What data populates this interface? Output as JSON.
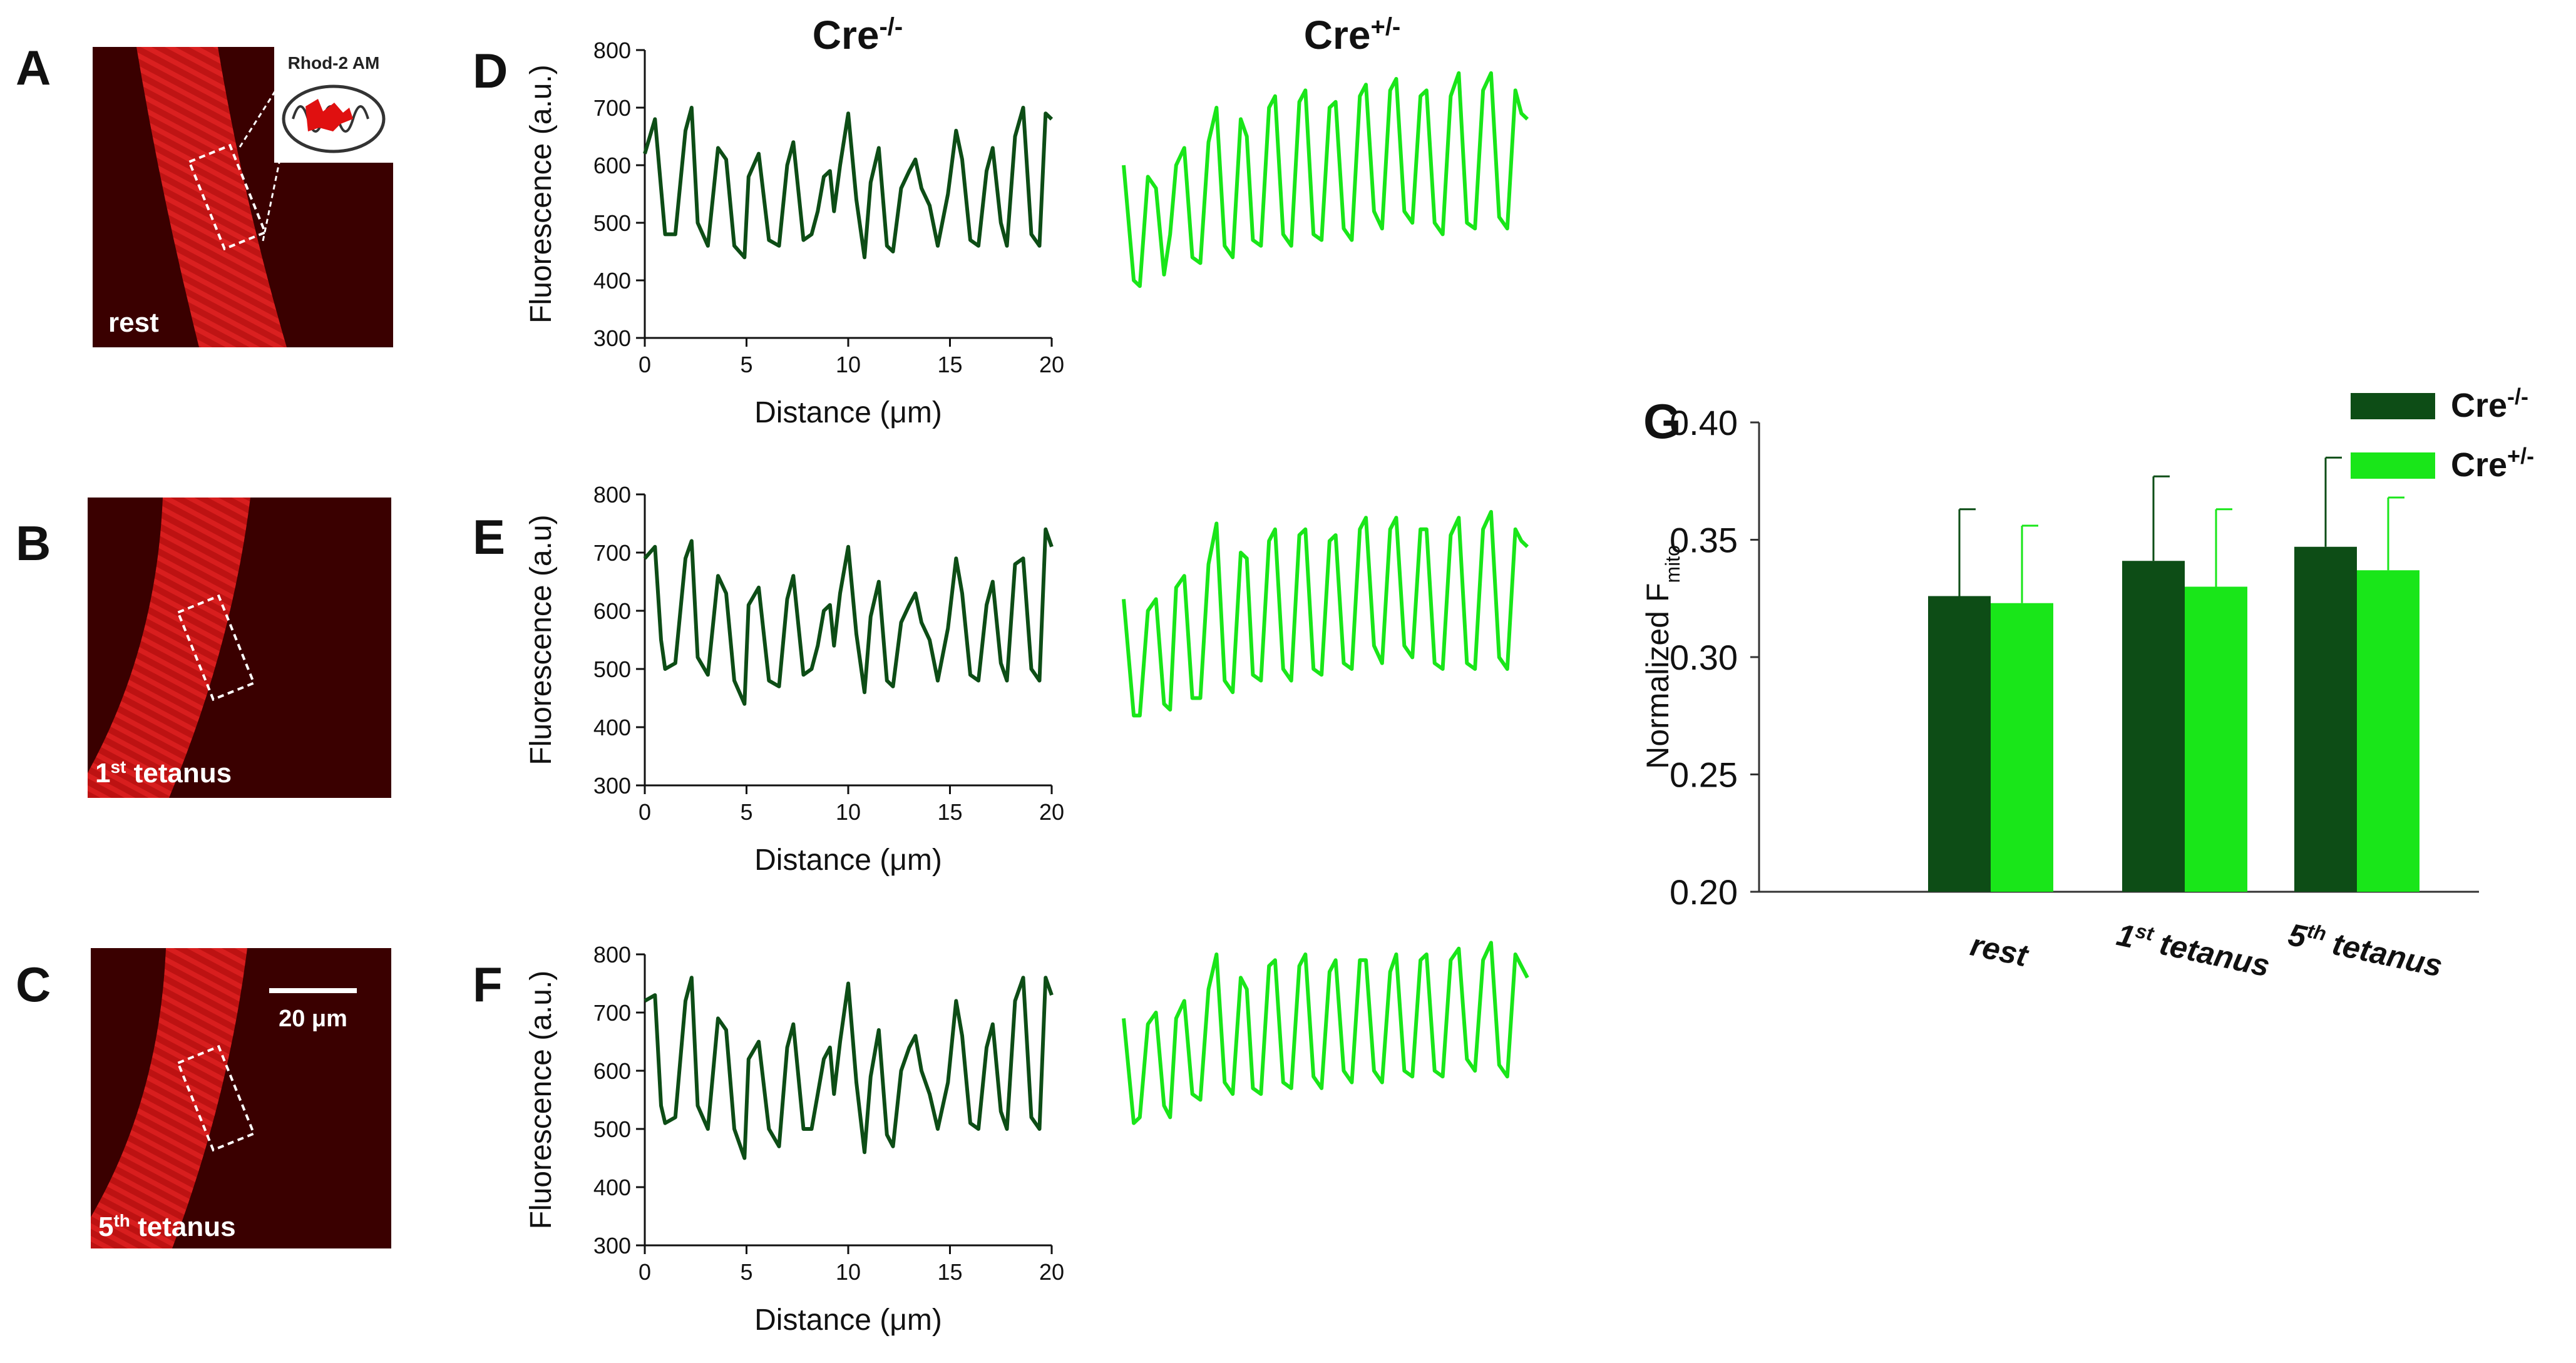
{
  "panels": {
    "A": {
      "letter": "A",
      "label": "rest",
      "inset_label": "Rhod-2 AM"
    },
    "B": {
      "letter": "B",
      "label_base": "1",
      "label_sup": "st",
      "label_rest": " tetanus"
    },
    "C": {
      "letter": "C",
      "label_base": "5",
      "label_sup": "th",
      "label_rest": " tetanus",
      "scalebar_label": "20 μm"
    },
    "D": {
      "letter": "D"
    },
    "E": {
      "letter": "E"
    },
    "F": {
      "letter": "F"
    },
    "G": {
      "letter": "G"
    }
  },
  "column_headers": {
    "ko": {
      "base": "Cre",
      "sup": "-/-"
    },
    "het": {
      "base": "Cre",
      "sup": "+/-"
    }
  },
  "colors": {
    "dark_green": "#0d4d16",
    "light_green": "#19e619",
    "micro_background": "#3a0000",
    "fiber_red": "#c41313"
  },
  "chart_data": [
    {
      "id": "profile-D",
      "type": "line",
      "panel": "D",
      "xlabel": "Distance (μm)",
      "ylabel": "Fluorescence (a.u.)",
      "xlim": [
        0,
        20
      ],
      "ylim": [
        300,
        800
      ],
      "xticks": [
        0,
        5,
        10,
        15,
        20
      ],
      "yticks": [
        300,
        400,
        500,
        600,
        700,
        800
      ],
      "series": [
        {
          "name": "Cre-/-",
          "color": "#0d4d16",
          "x": [
            0,
            0.5,
            0.8,
            1.0,
            1.5,
            2.0,
            2.3,
            2.6,
            3.1,
            3.6,
            4.0,
            4.4,
            4.9,
            5.1,
            5.6,
            6.1,
            6.6,
            7.0,
            7.3,
            7.8,
            8.2,
            8.5,
            8.8,
            9.1,
            9.3,
            9.6,
            10.0,
            10.4,
            10.8,
            11.1,
            11.5,
            11.9,
            12.2,
            12.6,
            13.0,
            13.3,
            13.6,
            14.0,
            14.4,
            14.9,
            15.3,
            15.6,
            16.0,
            16.4,
            16.8,
            17.1,
            17.5,
            17.8,
            18.2,
            18.6,
            19.0,
            19.4,
            19.7,
            20.0
          ],
          "y": [
            620,
            680,
            560,
            480,
            480,
            660,
            700,
            500,
            460,
            630,
            610,
            460,
            440,
            580,
            620,
            470,
            460,
            600,
            640,
            470,
            480,
            520,
            580,
            590,
            520,
            600,
            690,
            540,
            440,
            570,
            630,
            460,
            450,
            560,
            590,
            610,
            560,
            530,
            460,
            550,
            660,
            610,
            470,
            460,
            590,
            630,
            500,
            460,
            650,
            700,
            480,
            460,
            690,
            680
          ]
        },
        {
          "name": "Cre+/-",
          "color": "#19e619",
          "x": [
            0,
            0.5,
            0.8,
            1.2,
            1.6,
            2.0,
            2.3,
            2.6,
            3.0,
            3.4,
            3.8,
            4.2,
            4.6,
            5.0,
            5.4,
            5.8,
            6.1,
            6.4,
            6.8,
            7.2,
            7.5,
            7.9,
            8.3,
            8.7,
            9.0,
            9.4,
            9.8,
            10.2,
            10.5,
            10.9,
            11.3,
            11.7,
            12.0,
            12.4,
            12.8,
            13.2,
            13.5,
            13.9,
            14.3,
            14.7,
            15.0,
            15.4,
            15.8,
            16.2,
            16.6,
            17.0,
            17.4,
            17.8,
            18.2,
            18.6,
            19.0,
            19.4,
            19.7,
            20.0
          ],
          "y": [
            600,
            400,
            390,
            580,
            560,
            410,
            480,
            600,
            630,
            440,
            430,
            640,
            700,
            460,
            440,
            680,
            650,
            470,
            460,
            700,
            720,
            480,
            460,
            710,
            730,
            480,
            470,
            700,
            710,
            490,
            470,
            720,
            740,
            520,
            490,
            730,
            750,
            520,
            500,
            720,
            730,
            500,
            480,
            720,
            760,
            500,
            490,
            730,
            760,
            510,
            490,
            730,
            690,
            680
          ]
        }
      ]
    },
    {
      "id": "profile-E",
      "type": "line",
      "panel": "E",
      "xlabel": "Distance (μm)",
      "ylabel": "Fluorescence (a.u)",
      "xlim": [
        0,
        20
      ],
      "ylim": [
        300,
        800
      ],
      "xticks": [
        0,
        5,
        10,
        15,
        20
      ],
      "yticks": [
        300,
        400,
        500,
        600,
        700,
        800
      ],
      "series": [
        {
          "name": "Cre-/-",
          "color": "#0d4d16",
          "x": [
            0,
            0.5,
            0.8,
            1.0,
            1.5,
            2.0,
            2.3,
            2.6,
            3.1,
            3.6,
            4.0,
            4.4,
            4.9,
            5.1,
            5.6,
            6.1,
            6.6,
            7.0,
            7.3,
            7.8,
            8.2,
            8.5,
            8.8,
            9.1,
            9.3,
            9.6,
            10.0,
            10.4,
            10.8,
            11.1,
            11.5,
            11.9,
            12.2,
            12.6,
            13.0,
            13.3,
            13.6,
            14.0,
            14.4,
            14.9,
            15.3,
            15.6,
            16.0,
            16.4,
            16.8,
            17.1,
            17.5,
            17.8,
            18.2,
            18.6,
            19.0,
            19.4,
            19.7,
            20.0
          ],
          "y": [
            690,
            710,
            550,
            500,
            510,
            690,
            720,
            520,
            490,
            660,
            630,
            480,
            440,
            610,
            640,
            480,
            470,
            620,
            660,
            490,
            500,
            540,
            600,
            610,
            540,
            630,
            710,
            560,
            460,
            590,
            650,
            480,
            470,
            580,
            610,
            630,
            580,
            550,
            480,
            570,
            690,
            630,
            490,
            480,
            610,
            650,
            510,
            480,
            680,
            690,
            500,
            480,
            740,
            710
          ]
        },
        {
          "name": "Cre+/-",
          "color": "#19e619",
          "x": [
            0,
            0.5,
            0.8,
            1.2,
            1.6,
            2.0,
            2.3,
            2.6,
            3.0,
            3.4,
            3.8,
            4.2,
            4.6,
            5.0,
            5.4,
            5.8,
            6.1,
            6.4,
            6.8,
            7.2,
            7.5,
            7.9,
            8.3,
            8.7,
            9.0,
            9.4,
            9.8,
            10.2,
            10.5,
            10.9,
            11.3,
            11.7,
            12.0,
            12.4,
            12.8,
            13.2,
            13.5,
            13.9,
            14.3,
            14.7,
            15.0,
            15.4,
            15.8,
            16.2,
            16.6,
            17.0,
            17.4,
            17.8,
            18.2,
            18.6,
            19.0,
            19.4,
            19.7,
            20.0
          ],
          "y": [
            620,
            420,
            420,
            600,
            620,
            440,
            430,
            640,
            660,
            450,
            450,
            680,
            750,
            480,
            460,
            700,
            690,
            490,
            480,
            720,
            740,
            500,
            480,
            730,
            740,
            500,
            490,
            720,
            730,
            510,
            500,
            740,
            760,
            540,
            510,
            740,
            760,
            540,
            520,
            740,
            740,
            510,
            500,
            730,
            760,
            510,
            500,
            740,
            770,
            520,
            500,
            740,
            720,
            710
          ]
        }
      ]
    },
    {
      "id": "profile-F",
      "type": "line",
      "panel": "F",
      "xlabel": "Distance (μm)",
      "ylabel": "Fluorescence (a.u.)",
      "xlim": [
        0,
        20
      ],
      "ylim": [
        300,
        800
      ],
      "xticks": [
        0,
        5,
        10,
        15,
        20
      ],
      "yticks": [
        300,
        400,
        500,
        600,
        700,
        800
      ],
      "series": [
        {
          "name": "Cre-/-",
          "color": "#0d4d16",
          "x": [
            0,
            0.5,
            0.8,
            1.0,
            1.5,
            2.0,
            2.3,
            2.6,
            3.1,
            3.6,
            4.0,
            4.4,
            4.9,
            5.1,
            5.6,
            6.1,
            6.6,
            7.0,
            7.3,
            7.8,
            8.2,
            8.5,
            8.8,
            9.1,
            9.3,
            9.6,
            10.0,
            10.4,
            10.8,
            11.1,
            11.5,
            11.9,
            12.2,
            12.6,
            13.0,
            13.3,
            13.6,
            14.0,
            14.4,
            14.9,
            15.3,
            15.6,
            16.0,
            16.4,
            16.8,
            17.1,
            17.5,
            17.8,
            18.2,
            18.6,
            19.0,
            19.4,
            19.7,
            20.0
          ],
          "y": [
            720,
            730,
            540,
            510,
            520,
            720,
            760,
            540,
            500,
            690,
            670,
            500,
            450,
            620,
            650,
            500,
            470,
            640,
            680,
            500,
            500,
            560,
            620,
            640,
            560,
            650,
            750,
            580,
            460,
            590,
            670,
            490,
            470,
            600,
            640,
            660,
            600,
            560,
            500,
            580,
            720,
            660,
            510,
            500,
            640,
            680,
            530,
            500,
            720,
            760,
            520,
            500,
            760,
            730
          ]
        },
        {
          "name": "Cre+/-",
          "color": "#19e619",
          "x": [
            0,
            0.5,
            0.8,
            1.2,
            1.6,
            2.0,
            2.3,
            2.6,
            3.0,
            3.4,
            3.8,
            4.2,
            4.6,
            5.0,
            5.4,
            5.8,
            6.1,
            6.4,
            6.8,
            7.2,
            7.5,
            7.9,
            8.3,
            8.7,
            9.0,
            9.4,
            9.8,
            10.2,
            10.5,
            10.9,
            11.3,
            11.7,
            12.0,
            12.4,
            12.8,
            13.2,
            13.5,
            13.9,
            14.3,
            14.7,
            15.0,
            15.4,
            15.8,
            16.2,
            16.6,
            17.0,
            17.4,
            17.8,
            18.2,
            18.6,
            19.0,
            19.4,
            19.7,
            20.0
          ],
          "y": [
            690,
            510,
            520,
            680,
            700,
            540,
            520,
            690,
            720,
            560,
            550,
            740,
            800,
            580,
            560,
            760,
            740,
            570,
            560,
            780,
            790,
            580,
            570,
            780,
            800,
            590,
            570,
            770,
            790,
            600,
            580,
            790,
            790,
            600,
            580,
            770,
            800,
            600,
            590,
            790,
            800,
            600,
            590,
            790,
            810,
            620,
            600,
            790,
            820,
            610,
            590,
            800,
            780,
            760
          ]
        }
      ]
    },
    {
      "id": "bar-G",
      "type": "bar",
      "panel": "G",
      "ylabel_base": "Normalized F",
      "ylabel_sub": "mito",
      "ylim": [
        0.2,
        0.4
      ],
      "yticks": [
        0.2,
        0.25,
        0.3,
        0.35,
        0.4
      ],
      "ytick_labels": [
        "0.20",
        "0.25",
        "0.30",
        "0.35",
        "0.40"
      ],
      "categories": [
        {
          "base": "rest",
          "sup": "",
          "rest": ""
        },
        {
          "base": "1",
          "sup": "st",
          "rest": " tetanus"
        },
        {
          "base": "5",
          "sup": "th",
          "rest": " tetanus"
        }
      ],
      "series": [
        {
          "name": "Cre-/-",
          "legend_base": "Cre",
          "legend_sup": "-/-",
          "color": "#0d4d16",
          "values": [
            0.326,
            0.341,
            0.347
          ],
          "errors": [
            0.037,
            0.036,
            0.038
          ]
        },
        {
          "name": "Cre+/-",
          "legend_base": "Cre",
          "legend_sup": "+/-",
          "color": "#19e619",
          "values": [
            0.323,
            0.33,
            0.337
          ],
          "errors": [
            0.033,
            0.033,
            0.031
          ]
        }
      ],
      "legend_position": "top-right"
    }
  ]
}
